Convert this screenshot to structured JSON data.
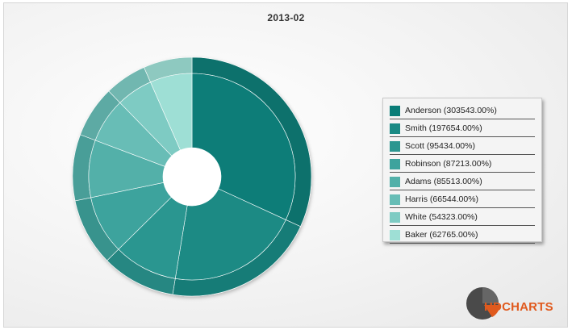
{
  "chart_data": {
    "type": "pie",
    "title": "2013-02",
    "categories": [
      "Anderson",
      "Smith",
      "Scott",
      "Robinson",
      "Adams",
      "Harris",
      "White",
      "Baker"
    ],
    "values": [
      303543,
      197654,
      95434,
      87213,
      85513,
      66544,
      54323,
      62765
    ],
    "legend_labels": [
      "Anderson (303543.00%)",
      "Smith (197654.00%)",
      "Scott (95434.00%)",
      "Robinson (87213.00%)",
      "Adams (85513.00%)",
      "Harris (66544.00%)",
      "White (54323.00%)",
      "Baker (62765.00%)"
    ],
    "colors": [
      "#0a7d78",
      "#1a8a84",
      "#2b9690",
      "#3da39d",
      "#52b0a9",
      "#67bdb6",
      "#7ecbc3",
      "#9edfd5"
    ],
    "legend_position": "right"
  },
  "logo": {
    "prefix": "HD",
    "suffix": "CHARTS",
    "prefix_color": "#e05a1e",
    "suffix_color": "#e05a1e"
  }
}
